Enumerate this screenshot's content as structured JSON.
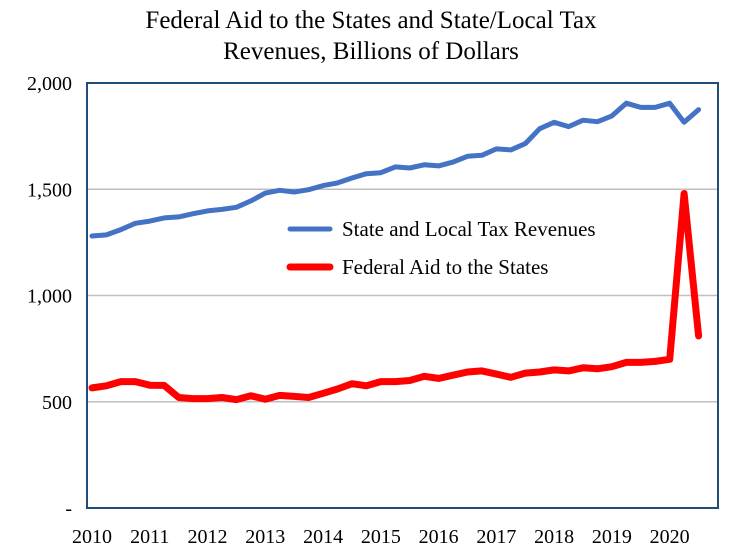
{
  "chart_data": {
    "type": "line",
    "title_lines": [
      "Federal Aid to the States and State/Local Tax",
      "Revenues, Billions of Dollars"
    ],
    "xlabel": "",
    "ylabel": "",
    "ylim": [
      0,
      2000
    ],
    "xlim": [
      2010,
      2020.75
    ],
    "y_ticks": [
      0,
      500,
      1000,
      1500,
      2000
    ],
    "y_tick_labels": [
      "-",
      "500",
      "1,000",
      "1,500",
      "2,000"
    ],
    "x_ticks": [
      2010,
      2011,
      2012,
      2013,
      2014,
      2015,
      2016,
      2017,
      2018,
      2019,
      2020
    ],
    "x_tick_labels": [
      "2010",
      "2011",
      "2012",
      "2013",
      "2014",
      "2015",
      "2016",
      "2017",
      "2018",
      "2019",
      "2020"
    ],
    "grid": "horizontal",
    "legend_position": "center-right",
    "x": [
      2010.0,
      2010.25,
      2010.5,
      2010.75,
      2011.0,
      2011.25,
      2011.5,
      2011.75,
      2012.0,
      2012.25,
      2012.5,
      2012.75,
      2013.0,
      2013.25,
      2013.5,
      2013.75,
      2014.0,
      2014.25,
      2014.5,
      2014.75,
      2015.0,
      2015.25,
      2015.5,
      2015.75,
      2016.0,
      2016.25,
      2016.5,
      2016.75,
      2017.0,
      2017.25,
      2017.5,
      2017.75,
      2018.0,
      2018.25,
      2018.5,
      2018.75,
      2019.0,
      2019.25,
      2019.5,
      2019.75,
      2020.0,
      2020.25,
      2020.5
    ],
    "series": [
      {
        "name": "State and Local Tax Revenues",
        "color": "#4472C4",
        "values": [
          1280,
          1285,
          1310,
          1340,
          1350,
          1365,
          1370,
          1385,
          1398,
          1405,
          1415,
          1445,
          1482,
          1495,
          1487,
          1498,
          1517,
          1530,
          1553,
          1573,
          1578,
          1605,
          1600,
          1615,
          1610,
          1628,
          1655,
          1660,
          1690,
          1685,
          1715,
          1785,
          1815,
          1795,
          1825,
          1818,
          1845,
          1905,
          1885,
          1885,
          1905,
          1815,
          1875
        ]
      },
      {
        "name": "Federal Aid to the States",
        "color": "#FF0000",
        "values": [
          565,
          575,
          595,
          595,
          578,
          577,
          520,
          515,
          515,
          520,
          510,
          528,
          512,
          530,
          525,
          520,
          540,
          560,
          585,
          575,
          595,
          595,
          600,
          620,
          610,
          625,
          640,
          645,
          630,
          615,
          635,
          640,
          650,
          645,
          660,
          655,
          665,
          685,
          685,
          690,
          700,
          1480,
          810
        ]
      }
    ]
  }
}
